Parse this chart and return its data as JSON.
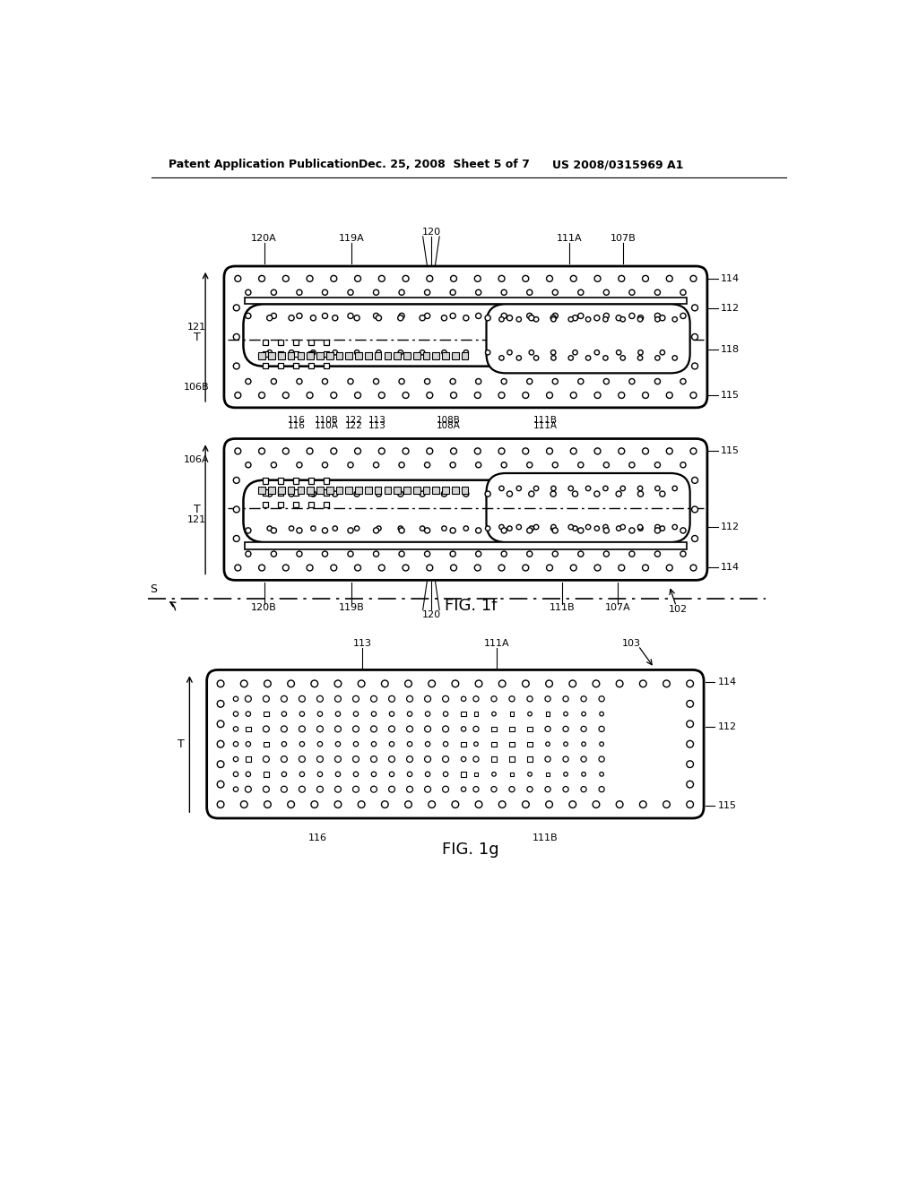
{
  "bg_color": "#ffffff",
  "header_text": "Patent Application Publication",
  "header_date": "Dec. 25, 2008  Sheet 5 of 7",
  "header_patent": "US 2008/0315969 A1",
  "fig1f_label": "FIG. 1f",
  "fig1g_label": "FIG. 1g"
}
